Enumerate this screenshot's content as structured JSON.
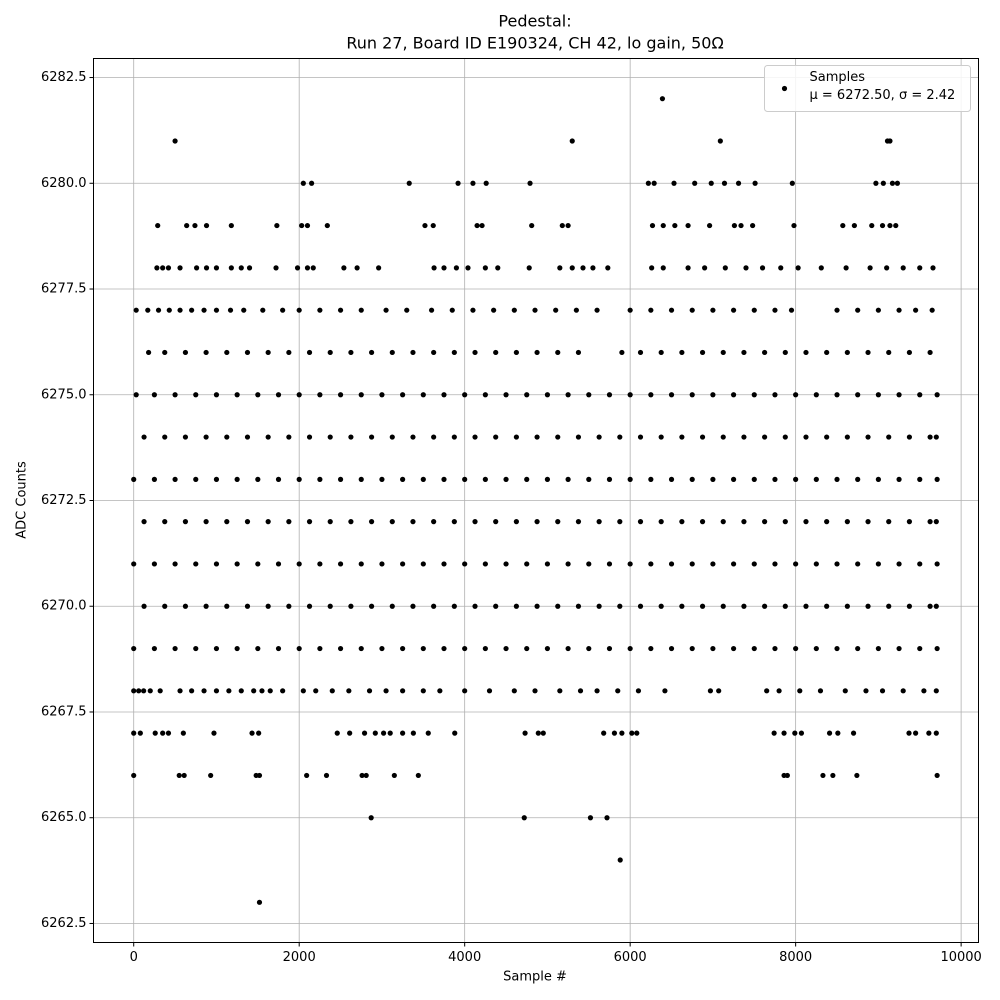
{
  "chart_data": {
    "type": "scatter",
    "title": "Pedestal:",
    "subtitle": "Run 27, Board ID E190324, CH 42, lo gain, 50Ω",
    "x_label": "Sample #",
    "y_label": "ADC Counts",
    "xlim": [
      -486,
      10210
    ],
    "ylim": [
      6262.05,
      6282.95
    ],
    "xticks": [
      0,
      2000,
      4000,
      6000,
      8000,
      10000
    ],
    "yticks": [
      6262.5,
      {
        "value": 6265,
        "label": "6265.0"
      },
      6267.5,
      {
        "value": 6270,
        "label": "6270.0"
      },
      6272.5,
      {
        "value": 6275,
        "label": "6275.0"
      },
      6277.5,
      {
        "value": 6280,
        "label": "6280.0"
      },
      6282.5
    ],
    "grid": true,
    "legend": "upper right",
    "legend_note": "μ = 6272.50, σ = 2.42",
    "series": [
      {
        "name": "Samples",
        "color": "#000000",
        "x": [
          0,
          250,
          500,
          750,
          1000,
          1250,
          1500,
          1750,
          2000,
          2250,
          2500,
          2750,
          3000,
          3250,
          3500,
          3750,
          4000,
          4250,
          4500,
          4750,
          5000,
          5250,
          5500,
          5750,
          6000,
          6250,
          6500,
          6750,
          7000,
          7250,
          7500,
          7750,
          8000,
          8250,
          8500,
          8750,
          9000,
          9250,
          9500,
          9710,
          125,
          375,
          625,
          875,
          1125,
          1375,
          1625,
          1875,
          2125,
          2375,
          2625,
          2875,
          3125,
          3375,
          3625,
          3875,
          4125,
          4375,
          4625,
          4875,
          5125,
          5375,
          5625,
          5875,
          6125,
          6375,
          6625,
          6875,
          7125,
          7375,
          7625,
          7875,
          8125,
          8375,
          8625,
          8875,
          9125,
          9375,
          9625,
          9700,
          0,
          250,
          500,
          750,
          1000,
          1250,
          1500,
          1750,
          2000,
          2250,
          2500,
          2750,
          3000,
          3250,
          3500,
          3750,
          4000,
          4250,
          4500,
          4750,
          5000,
          5250,
          5500,
          5750,
          6000,
          6250,
          6500,
          6750,
          7000,
          7250,
          7500,
          7750,
          8000,
          8250,
          8500,
          8750,
          9000,
          9250,
          9500,
          9710,
          125,
          375,
          625,
          875,
          1125,
          1375,
          1625,
          1875,
          2125,
          2375,
          2625,
          2875,
          3125,
          3375,
          3625,
          3875,
          4125,
          4375,
          4625,
          4875,
          5125,
          5375,
          5625,
          5875,
          6125,
          6375,
          6625,
          6875,
          7125,
          7375,
          7625,
          7875,
          8125,
          8375,
          8625,
          8875,
          9125,
          9375,
          9625,
          9700,
          0,
          250,
          500,
          750,
          1000,
          1250,
          1500,
          1750,
          2000,
          2250,
          2500,
          2750,
          3000,
          3250,
          3500,
          3750,
          4000,
          4250,
          4500,
          4750,
          5000,
          5250,
          5500,
          5750,
          6000,
          6250,
          6500,
          6750,
          7000,
          7250,
          7500,
          7750,
          8000,
          8250,
          8500,
          8750,
          9000,
          9250,
          9500,
          9710,
          125,
          375,
          625,
          875,
          1125,
          1375,
          1625,
          1875,
          2125,
          2375,
          2625,
          2875,
          3125,
          3375,
          3625,
          3875,
          4125,
          4375,
          4625,
          4875,
          5125,
          5375,
          5625,
          5875,
          6125,
          6375,
          6625,
          6875,
          7125,
          7375,
          7625,
          7875,
          8125,
          8375,
          8625,
          8875,
          9125,
          9375,
          9625,
          9700,
          30,
          250,
          500,
          750,
          1000,
          1250,
          1500,
          1750,
          2000,
          2250,
          2500,
          2750,
          3000,
          3250,
          3500,
          3750,
          4000,
          4250,
          4500,
          4750,
          5000,
          5250,
          5500,
          5750,
          6000,
          6250,
          6500,
          6750,
          7000,
          7250,
          7500,
          7750,
          8000,
          8250,
          8500,
          8750,
          9000,
          9250,
          9500,
          9710,
          180,
          375,
          625,
          875,
          1125,
          1375,
          1625,
          1875,
          2125,
          2375,
          2625,
          2875,
          3125,
          3375,
          3625,
          3875,
          4125,
          4375,
          4625,
          4875,
          5125,
          5375,
          5900,
          6125,
          6375,
          6625,
          6875,
          7125,
          7375,
          7625,
          7875,
          8125,
          8375,
          8625,
          8875,
          9125,
          9375,
          9625,
          0,
          60,
          120,
          200,
          320,
          560,
          700,
          850,
          1000,
          1150,
          1300,
          1450,
          1550,
          1650,
          1800,
          2050,
          2200,
          2400,
          2600,
          2850,
          3050,
          3250,
          3500,
          3700,
          4000,
          4300,
          4600,
          4850,
          5150,
          5400,
          5600,
          5850,
          6100,
          6420,
          6970,
          7070,
          7650,
          7800,
          8050,
          8300,
          8600,
          8850,
          9050,
          9300,
          9550,
          9700,
          30,
          170,
          300,
          430,
          560,
          700,
          850,
          1000,
          1170,
          1330,
          1560,
          1800,
          2000,
          2250,
          2500,
          2750,
          3050,
          3300,
          3600,
          3850,
          4100,
          4350,
          4600,
          4850,
          5100,
          5350,
          5600,
          6000,
          6250,
          6500,
          6750,
          7000,
          7250,
          7500,
          7750,
          7950,
          8500,
          8750,
          9000,
          9250,
          9450,
          9650,
          280,
          350,
          420,
          560,
          760,
          880,
          1000,
          1180,
          1300,
          1400,
          1720,
          1980,
          2100,
          2170,
          2540,
          2700,
          2960,
          3630,
          3750,
          3900,
          4040,
          4250,
          4400,
          4780,
          5150,
          5300,
          5430,
          5550,
          5730,
          6260,
          6400,
          6700,
          6900,
          7150,
          7400,
          7600,
          7820,
          8030,
          8310,
          8610,
          8900,
          9100,
          9300,
          9500,
          9660,
          290,
          640,
          740,
          880,
          1180,
          1730,
          2030,
          2100,
          2340,
          3520,
          3620,
          4150,
          4210,
          4810,
          5180,
          5250,
          6270,
          6400,
          6540,
          6700,
          6960,
          7260,
          7340,
          7480,
          7980,
          8570,
          8710,
          8920,
          9050,
          9140,
          9210,
          2050,
          2150,
          3330,
          3920,
          4100,
          4260,
          4790,
          6220,
          6290,
          6530,
          6780,
          6980,
          7140,
          7310,
          7510,
          7960,
          8970,
          9060,
          9170,
          9230,
          500,
          5300,
          7090,
          9110,
          9140,
          6390,
          0,
          80,
          260,
          350,
          420,
          600,
          970,
          1430,
          1510,
          2460,
          2610,
          2790,
          2920,
          3020,
          3100,
          3250,
          3380,
          3560,
          3880,
          4730,
          4890,
          4950,
          5680,
          5810,
          5900,
          6020,
          6080,
          7740,
          7860,
          7990,
          8070,
          8410,
          8510,
          8700,
          9370,
          9450,
          9610,
          9700,
          0,
          550,
          610,
          930,
          1480,
          1520,
          2090,
          2330,
          2760,
          2810,
          3150,
          3440,
          7860,
          7900,
          8330,
          8450,
          8740,
          9710,
          2870,
          4720,
          5520,
          5720,
          5880,
          1520
        ],
        "values": [
          6269,
          6269,
          6269,
          6269,
          6269,
          6269,
          6269,
          6269,
          6269,
          6269,
          6269,
          6269,
          6269,
          6269,
          6269,
          6269,
          6269,
          6269,
          6269,
          6269,
          6269,
          6269,
          6269,
          6269,
          6269,
          6269,
          6269,
          6269,
          6269,
          6269,
          6269,
          6269,
          6269,
          6269,
          6269,
          6269,
          6269,
          6269,
          6269,
          6269,
          6270,
          6270,
          6270,
          6270,
          6270,
          6270,
          6270,
          6270,
          6270,
          6270,
          6270,
          6270,
          6270,
          6270,
          6270,
          6270,
          6270,
          6270,
          6270,
          6270,
          6270,
          6270,
          6270,
          6270,
          6270,
          6270,
          6270,
          6270,
          6270,
          6270,
          6270,
          6270,
          6270,
          6270,
          6270,
          6270,
          6270,
          6270,
          6270,
          6270,
          6271,
          6271,
          6271,
          6271,
          6271,
          6271,
          6271,
          6271,
          6271,
          6271,
          6271,
          6271,
          6271,
          6271,
          6271,
          6271,
          6271,
          6271,
          6271,
          6271,
          6271,
          6271,
          6271,
          6271,
          6271,
          6271,
          6271,
          6271,
          6271,
          6271,
          6271,
          6271,
          6271,
          6271,
          6271,
          6271,
          6271,
          6271,
          6271,
          6271,
          6272,
          6272,
          6272,
          6272,
          6272,
          6272,
          6272,
          6272,
          6272,
          6272,
          6272,
          6272,
          6272,
          6272,
          6272,
          6272,
          6272,
          6272,
          6272,
          6272,
          6272,
          6272,
          6272,
          6272,
          6272,
          6272,
          6272,
          6272,
          6272,
          6272,
          6272,
          6272,
          6272,
          6272,
          6272,
          6272,
          6272,
          6272,
          6272,
          6272,
          6273,
          6273,
          6273,
          6273,
          6273,
          6273,
          6273,
          6273,
          6273,
          6273,
          6273,
          6273,
          6273,
          6273,
          6273,
          6273,
          6273,
          6273,
          6273,
          6273,
          6273,
          6273,
          6273,
          6273,
          6273,
          6273,
          6273,
          6273,
          6273,
          6273,
          6273,
          6273,
          6273,
          6273,
          6273,
          6273,
          6273,
          6273,
          6273,
          6273,
          6274,
          6274,
          6274,
          6274,
          6274,
          6274,
          6274,
          6274,
          6274,
          6274,
          6274,
          6274,
          6274,
          6274,
          6274,
          6274,
          6274,
          6274,
          6274,
          6274,
          6274,
          6274,
          6274,
          6274,
          6274,
          6274,
          6274,
          6274,
          6274,
          6274,
          6274,
          6274,
          6274,
          6274,
          6274,
          6274,
          6274,
          6274,
          6274,
          6274,
          6275,
          6275,
          6275,
          6275,
          6275,
          6275,
          6275,
          6275,
          6275,
          6275,
          6275,
          6275,
          6275,
          6275,
          6275,
          6275,
          6275,
          6275,
          6275,
          6275,
          6275,
          6275,
          6275,
          6275,
          6275,
          6275,
          6275,
          6275,
          6275,
          6275,
          6275,
          6275,
          6275,
          6275,
          6275,
          6275,
          6275,
          6275,
          6275,
          6275,
          6276,
          6276,
          6276,
          6276,
          6276,
          6276,
          6276,
          6276,
          6276,
          6276,
          6276,
          6276,
          6276,
          6276,
          6276,
          6276,
          6276,
          6276,
          6276,
          6276,
          6276,
          6276,
          6276,
          6276,
          6276,
          6276,
          6276,
          6276,
          6276,
          6276,
          6276,
          6276,
          6276,
          6276,
          6276,
          6276,
          6276,
          6276,
          6268,
          6268,
          6268,
          6268,
          6268,
          6268,
          6268,
          6268,
          6268,
          6268,
          6268,
          6268,
          6268,
          6268,
          6268,
          6268,
          6268,
          6268,
          6268,
          6268,
          6268,
          6268,
          6268,
          6268,
          6268,
          6268,
          6268,
          6268,
          6268,
          6268,
          6268,
          6268,
          6268,
          6268,
          6268,
          6268,
          6268,
          6268,
          6268,
          6268,
          6268,
          6268,
          6268,
          6268,
          6268,
          6268,
          6277,
          6277,
          6277,
          6277,
          6277,
          6277,
          6277,
          6277,
          6277,
          6277,
          6277,
          6277,
          6277,
          6277,
          6277,
          6277,
          6277,
          6277,
          6277,
          6277,
          6277,
          6277,
          6277,
          6277,
          6277,
          6277,
          6277,
          6277,
          6277,
          6277,
          6277,
          6277,
          6277,
          6277,
          6277,
          6277,
          6277,
          6277,
          6277,
          6277,
          6277,
          6277,
          6278,
          6278,
          6278,
          6278,
          6278,
          6278,
          6278,
          6278,
          6278,
          6278,
          6278,
          6278,
          6278,
          6278,
          6278,
          6278,
          6278,
          6278,
          6278,
          6278,
          6278,
          6278,
          6278,
          6278,
          6278,
          6278,
          6278,
          6278,
          6278,
          6278,
          6278,
          6278,
          6278,
          6278,
          6278,
          6278,
          6278,
          6278,
          6278,
          6278,
          6278,
          6278,
          6278,
          6278,
          6278,
          6279,
          6279,
          6279,
          6279,
          6279,
          6279,
          6279,
          6279,
          6279,
          6279,
          6279,
          6279,
          6279,
          6279,
          6279,
          6279,
          6279,
          6279,
          6279,
          6279,
          6279,
          6279,
          6279,
          6279,
          6279,
          6279,
          6279,
          6279,
          6279,
          6279,
          6279,
          6280,
          6280,
          6280,
          6280,
          6280,
          6280,
          6280,
          6280,
          6280,
          6280,
          6280,
          6280,
          6280,
          6280,
          6280,
          6280,
          6280,
          6280,
          6280,
          6280,
          6281,
          6281,
          6281,
          6281,
          6281,
          6282,
          6267,
          6267,
          6267,
          6267,
          6267,
          6267,
          6267,
          6267,
          6267,
          6267,
          6267,
          6267,
          6267,
          6267,
          6267,
          6267,
          6267,
          6267,
          6267,
          6267,
          6267,
          6267,
          6267,
          6267,
          6267,
          6267,
          6267,
          6267,
          6267,
          6267,
          6267,
          6267,
          6267,
          6267,
          6267,
          6267,
          6267,
          6267,
          6266,
          6266,
          6266,
          6266,
          6266,
          6266,
          6266,
          6266,
          6266,
          6266,
          6266,
          6266,
          6266,
          6266,
          6266,
          6266,
          6266,
          6266,
          6265,
          6265,
          6265,
          6265,
          6264,
          6263
        ]
      }
    ]
  }
}
